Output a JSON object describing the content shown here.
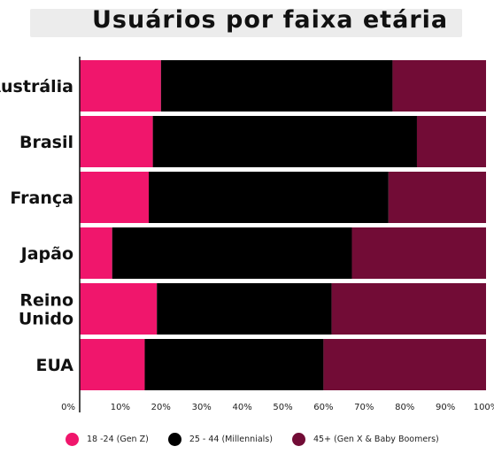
{
  "chart_data": {
    "type": "bar",
    "orientation": "horizontal",
    "stacked": true,
    "title": "Usuários por faixa etária",
    "categories": [
      "Austrália",
      "Brasil",
      "França",
      "Japão",
      "Reino Unido",
      "EUA"
    ],
    "category_lines": [
      [
        "Austrália"
      ],
      [
        "Brasil"
      ],
      [
        "França"
      ],
      [
        "Japão"
      ],
      [
        "Reino",
        "Unido"
      ],
      [
        "EUA"
      ]
    ],
    "series": [
      {
        "name": "18 -24 (Gen Z)",
        "color": "#f0166c",
        "values": [
          20,
          18,
          17,
          8,
          19,
          16
        ]
      },
      {
        "name": "25 - 44 (Millennials)",
        "color": "#000000",
        "values": [
          57,
          65,
          59,
          59,
          43,
          44
        ]
      },
      {
        "name": "45+ (Gen X & Baby Boomers)",
        "color": "#720c36",
        "values": [
          23,
          17,
          24,
          33,
          38,
          40
        ]
      }
    ],
    "x_ticks": [
      "0%",
      "10%",
      "20%",
      "30%",
      "40%",
      "50%",
      "60%",
      "70%",
      "80%",
      "90%",
      "100%"
    ],
    "xlim": [
      0,
      100
    ],
    "legend_position": "bottom",
    "grid": false
  }
}
